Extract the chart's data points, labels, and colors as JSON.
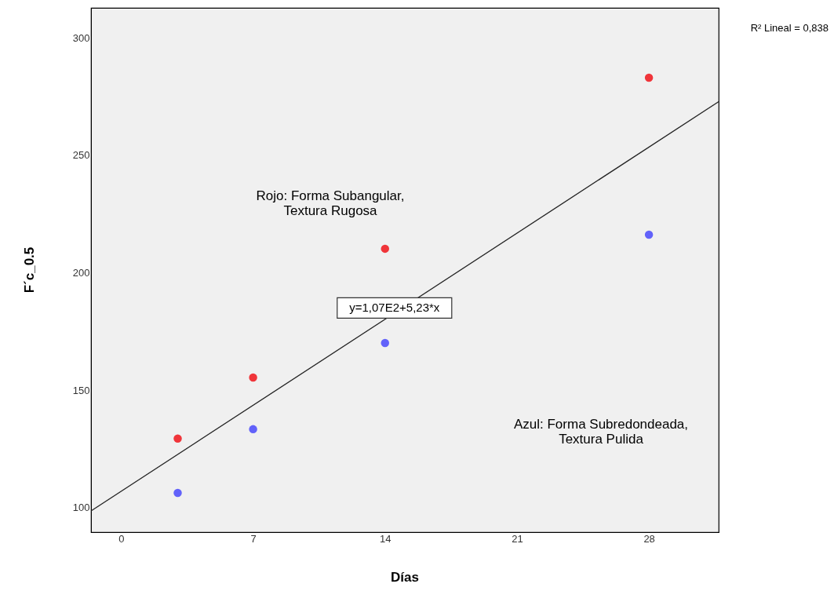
{
  "chart_data": {
    "type": "scatter",
    "xlabel": "Días",
    "ylabel": "F´c_0.5",
    "x": [
      3,
      7,
      14,
      28
    ],
    "series": [
      {
        "color": "#f0353a",
        "values": [
          129.4,
          155.4,
          210.2,
          283
        ]
      },
      {
        "color": "#6262fa",
        "values": [
          106.3,
          133.4,
          170.1,
          216.2
        ]
      },
      {
        "type": "line",
        "marker": "none",
        "line_style": "solid",
        "color": "#222222",
        "x": [
          -1.6,
          31.7
        ],
        "values": [
          98.6,
          272.8
        ]
      }
    ],
    "annotations": [
      "R² Lineal = 0,838",
      "Rojo: Forma Subangular,\nTextura Rugosa",
      "Azul: Forma Subredondeada,\nTextura Pulida",
      {
        "text": "y=1,07E2+5,23*x",
        "x": 14.5,
        "y": 185
      }
    ],
    "xlim": [
      -1.6,
      31.7
    ],
    "ylim": [
      89.6,
      312.7
    ],
    "xticks": [
      0,
      7,
      14,
      21,
      28
    ],
    "yticks": [
      100,
      150,
      200,
      250,
      300
    ],
    "grid": false,
    "marker": "circle"
  }
}
